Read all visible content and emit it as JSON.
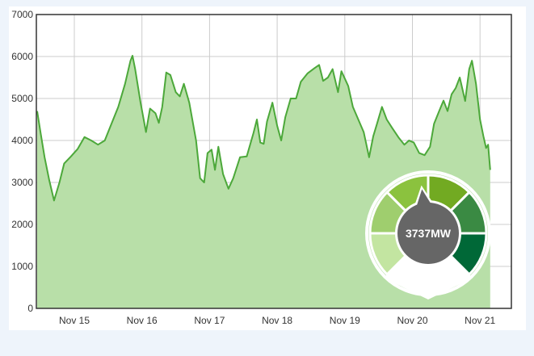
{
  "chart_data": {
    "type": "area",
    "xlabel": "",
    "ylabel": "",
    "ylim": [
      0,
      7000
    ],
    "yticks": [
      0,
      1000,
      2000,
      3000,
      4000,
      5000,
      6000,
      7000
    ],
    "x_ticks": [
      "Nov 15",
      "Nov 16",
      "Nov 17",
      "Nov 18",
      "Nov 19",
      "Nov 20",
      "Nov 21"
    ],
    "grid": true,
    "series": [
      {
        "values": [
          [
            -0.55,
            4700
          ],
          [
            -0.5,
            4200
          ],
          [
            -0.44,
            3600
          ],
          [
            -0.37,
            3050
          ],
          [
            -0.3,
            2570
          ],
          [
            -0.22,
            3000
          ],
          [
            -0.15,
            3450
          ],
          [
            -0.05,
            3620
          ],
          [
            0.05,
            3800
          ],
          [
            0.15,
            4080
          ],
          [
            0.25,
            4000
          ],
          [
            0.35,
            3900
          ],
          [
            0.45,
            4000
          ],
          [
            0.55,
            4400
          ],
          [
            0.65,
            4800
          ],
          [
            0.75,
            5350
          ],
          [
            0.83,
            5900
          ],
          [
            0.86,
            6020
          ],
          [
            0.9,
            5700
          ],
          [
            0.98,
            4900
          ],
          [
            1.06,
            4200
          ],
          [
            1.12,
            4760
          ],
          [
            1.2,
            4650
          ],
          [
            1.25,
            4420
          ],
          [
            1.3,
            4800
          ],
          [
            1.36,
            5620
          ],
          [
            1.42,
            5560
          ],
          [
            1.5,
            5150
          ],
          [
            1.56,
            5050
          ],
          [
            1.62,
            5350
          ],
          [
            1.7,
            4900
          ],
          [
            1.8,
            4000
          ],
          [
            1.86,
            3100
          ],
          [
            1.92,
            3000
          ],
          [
            1.97,
            3700
          ],
          [
            2.03,
            3780
          ],
          [
            2.08,
            3300
          ],
          [
            2.13,
            3850
          ],
          [
            2.2,
            3200
          ],
          [
            2.28,
            2850
          ],
          [
            2.35,
            3100
          ],
          [
            2.45,
            3600
          ],
          [
            2.55,
            3620
          ],
          [
            2.65,
            4180
          ],
          [
            2.7,
            4500
          ],
          [
            2.75,
            3950
          ],
          [
            2.8,
            3920
          ],
          [
            2.85,
            4450
          ],
          [
            2.93,
            4900
          ],
          [
            3.0,
            4350
          ],
          [
            3.06,
            4000
          ],
          [
            3.12,
            4550
          ],
          [
            3.2,
            5000
          ],
          [
            3.28,
            5000
          ],
          [
            3.35,
            5400
          ],
          [
            3.45,
            5600
          ],
          [
            3.55,
            5720
          ],
          [
            3.62,
            5800
          ],
          [
            3.68,
            5420
          ],
          [
            3.75,
            5500
          ],
          [
            3.82,
            5700
          ],
          [
            3.9,
            5150
          ],
          [
            3.95,
            5650
          ],
          [
            4.05,
            5300
          ],
          [
            4.12,
            4800
          ],
          [
            4.2,
            4500
          ],
          [
            4.28,
            4200
          ],
          [
            4.36,
            3600
          ],
          [
            4.42,
            4100
          ],
          [
            4.48,
            4420
          ],
          [
            4.55,
            4800
          ],
          [
            4.62,
            4500
          ],
          [
            4.7,
            4300
          ],
          [
            4.8,
            4060
          ],
          [
            4.88,
            3900
          ],
          [
            4.95,
            4000
          ],
          [
            5.02,
            3950
          ],
          [
            5.1,
            3700
          ],
          [
            5.18,
            3650
          ],
          [
            5.26,
            3850
          ],
          [
            5.32,
            4400
          ],
          [
            5.4,
            4720
          ],
          [
            5.46,
            4950
          ],
          [
            5.52,
            4700
          ],
          [
            5.58,
            5100
          ],
          [
            5.64,
            5250
          ],
          [
            5.7,
            5500
          ],
          [
            5.78,
            4940
          ],
          [
            5.84,
            5700
          ],
          [
            5.88,
            5900
          ],
          [
            5.94,
            5350
          ],
          [
            6.0,
            4500
          ],
          [
            6.05,
            4100
          ],
          [
            6.09,
            3820
          ],
          [
            6.12,
            3900
          ],
          [
            6.15,
            3300
          ]
        ]
      }
    ],
    "gauge": {
      "value": 3737,
      "unit": "MW",
      "display": "3737MW"
    },
    "colors": {
      "area_fill": "#b8dfa8",
      "line": "#4ca83a",
      "gauge_segments": [
        "#c3e5a1",
        "#9fce6e",
        "#8bc23e",
        "#72aa22",
        "#3a8a43",
        "#006837"
      ],
      "gauge_center": "#666666"
    }
  }
}
